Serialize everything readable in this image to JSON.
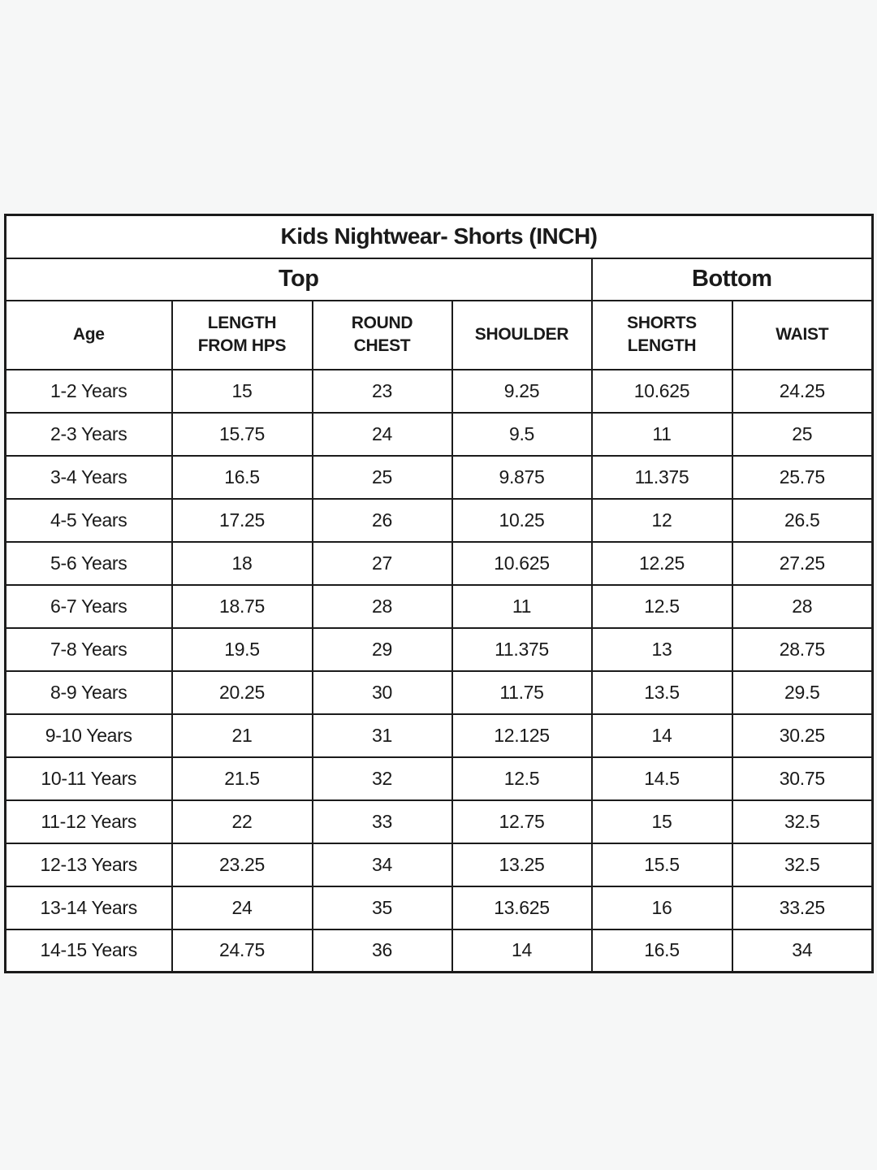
{
  "page": {
    "background_color": "#f6f7f7",
    "table_background_color": "#ffffff",
    "border_color": "#1b1b1b",
    "text_color": "#1a1a1a"
  },
  "chart_data": {
    "type": "table",
    "title": "Kids Nightwear- Shorts (INCH)",
    "groups": [
      {
        "label": "Top",
        "colspan": 4
      },
      {
        "label": "Bottom",
        "colspan": 2
      }
    ],
    "columns": [
      "Age",
      "LENGTH FROM HPS",
      "ROUND CHEST",
      "SHOULDER",
      "SHORTS LENGTH",
      "WAIST"
    ],
    "columns_display": [
      "Age",
      "LENGTH\nFROM HPS",
      "ROUND\nCHEST",
      "SHOULDER",
      "SHORTS\nLENGTH",
      "WAIST"
    ],
    "rows": [
      [
        "1-2 Years",
        "15",
        "23",
        "9.25",
        "10.625",
        "24.25"
      ],
      [
        "2-3 Years",
        "15.75",
        "24",
        "9.5",
        "11",
        "25"
      ],
      [
        "3-4 Years",
        "16.5",
        "25",
        "9.875",
        "11.375",
        "25.75"
      ],
      [
        "4-5 Years",
        "17.25",
        "26",
        "10.25",
        "12",
        "26.5"
      ],
      [
        "5-6 Years",
        "18",
        "27",
        "10.625",
        "12.25",
        "27.25"
      ],
      [
        "6-7 Years",
        "18.75",
        "28",
        "11",
        "12.5",
        "28"
      ],
      [
        "7-8 Years",
        "19.5",
        "29",
        "11.375",
        "13",
        "28.75"
      ],
      [
        "8-9 Years",
        "20.25",
        "30",
        "11.75",
        "13.5",
        "29.5"
      ],
      [
        "9-10 Years",
        "21",
        "31",
        "12.125",
        "14",
        "30.25"
      ],
      [
        "10-11 Years",
        "21.5",
        "32",
        "12.5",
        "14.5",
        "30.75"
      ],
      [
        "11-12 Years",
        "22",
        "33",
        "12.75",
        "15",
        "32.5"
      ],
      [
        "12-13 Years",
        "23.25",
        "34",
        "13.25",
        "15.5",
        "32.5"
      ],
      [
        "13-14 Years",
        "24",
        "35",
        "13.625",
        "16",
        "33.25"
      ],
      [
        "14-15 Years",
        "24.75",
        "36",
        "14",
        "16.5",
        "34"
      ]
    ]
  }
}
